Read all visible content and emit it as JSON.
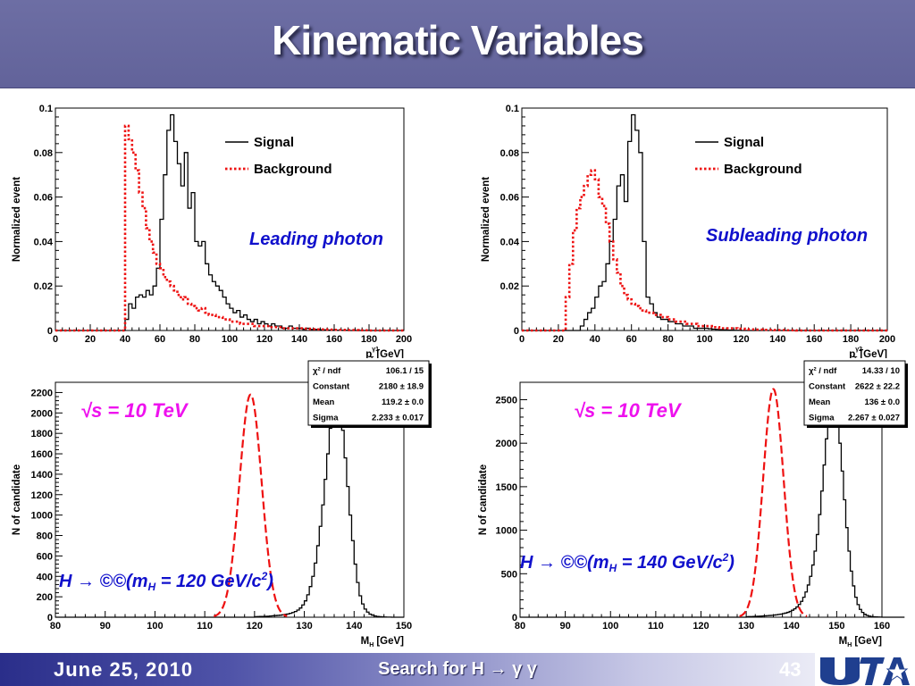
{
  "slide": {
    "title": "Kinematic Variables",
    "footer_date": "June 25, 2010",
    "footer_title": "Search for H → γ γ",
    "page_number": "43",
    "logo_text": "UTA"
  },
  "colors": {
    "signal": "#000000",
    "background": "#ee1111",
    "fit": "#ee1111",
    "annotation_blue": "#1010cc",
    "annotation_magenta": "#ee11ee",
    "title_bar": "#6a6ba2"
  },
  "chart_data": [
    {
      "id": "leading",
      "type": "line",
      "ylabel": "Normalized event",
      "xlabel_main": "p",
      "xlabel_sub": "T",
      "xlabel_sup": "γ1",
      "xlabel_unit": "[GeV]",
      "xlim": [
        0,
        200
      ],
      "ylim": [
        0,
        0.1
      ],
      "xticks": [
        0,
        20,
        40,
        60,
        80,
        100,
        120,
        140,
        160,
        180,
        200
      ],
      "yticks": [
        0,
        0.02,
        0.04,
        0.06,
        0.08,
        0.1
      ],
      "ytick_labels": [
        "0",
        "0.02",
        "0.04",
        "0.06",
        "0.08",
        "0.1"
      ],
      "annotation": "Leading photon",
      "legend": {
        "signal": "Signal",
        "background": "Background",
        "position": "top-right"
      },
      "series": [
        {
          "name": "Signal",
          "style": "step-solid",
          "x_start": 0,
          "bin_width": 2,
          "values": [
            0,
            0,
            0,
            0,
            0,
            0,
            0,
            0,
            0,
            0,
            0,
            0,
            0,
            0,
            0,
            0,
            0,
            0,
            0,
            0,
            0.005,
            0.012,
            0.01,
            0.015,
            0.016,
            0.015,
            0.018,
            0.016,
            0.02,
            0.028,
            0.05,
            0.07,
            0.09,
            0.097,
            0.085,
            0.075,
            0.065,
            0.08,
            0.055,
            0.062,
            0.04,
            0.038,
            0.04,
            0.03,
            0.025,
            0.022,
            0.02,
            0.018,
            0.015,
            0.012,
            0.01,
            0.008,
            0.009,
            0.006,
            0.007,
            0.005,
            0.004,
            0.005,
            0.003,
            0.004,
            0.003,
            0.002,
            0.003,
            0.002,
            0.002,
            0.001,
            0.001,
            0.002,
            0.001,
            0.001,
            0.001,
            0.0005,
            0.001,
            0.0005,
            0.0005,
            0.0005,
            0.0003,
            0.0003,
            0.0002,
            0.0002,
            0.0001,
            0.0001,
            0.0001,
            0.0001,
            0,
            0,
            0,
            0,
            0,
            0,
            0,
            0,
            0,
            0,
            0,
            0,
            0,
            0,
            0,
            0
          ]
        },
        {
          "name": "Background",
          "style": "step-dotted",
          "x_start": 0,
          "bin_width": 2,
          "values": [
            0,
            0,
            0,
            0,
            0,
            0,
            0,
            0,
            0,
            0,
            0,
            0,
            0,
            0,
            0,
            0,
            0,
            0,
            0,
            0,
            0.092,
            0.086,
            0.08,
            0.072,
            0.062,
            0.055,
            0.046,
            0.04,
            0.035,
            0.03,
            0.028,
            0.024,
            0.022,
            0.02,
            0.018,
            0.016,
            0.014,
            0.015,
            0.012,
            0.011,
            0.01,
            0.009,
            0.01,
            0.008,
            0.007,
            0.007,
            0.006,
            0.006,
            0.005,
            0.005,
            0.004,
            0.004,
            0.004,
            0.003,
            0.003,
            0.003,
            0.003,
            0.002,
            0.002,
            0.002,
            0.002,
            0.002,
            0.0015,
            0.0015,
            0.0015,
            0.001,
            0.001,
            0.001,
            0.001,
            0.001,
            0.001,
            0.0008,
            0.0008,
            0.0006,
            0.0006,
            0.0005,
            0.0005,
            0.0005,
            0.0004,
            0.0004,
            0.0003,
            0.0003,
            0.0003,
            0.0002,
            0.0002,
            0.0002,
            0.0002,
            0.0001,
            0.0001,
            0.0001,
            0,
            0,
            0,
            0,
            0,
            0,
            0,
            0,
            0,
            0
          ]
        }
      ]
    },
    {
      "id": "subleading",
      "type": "line",
      "ylabel": "Normalized event",
      "xlabel_main": "p",
      "xlabel_sub": "T",
      "xlabel_sup": "γ2",
      "xlabel_unit": "[GeV]",
      "xlim": [
        0,
        200
      ],
      "ylim": [
        0,
        0.1
      ],
      "xticks": [
        0,
        20,
        40,
        60,
        80,
        100,
        120,
        140,
        160,
        180,
        200
      ],
      "yticks": [
        0,
        0.02,
        0.04,
        0.06,
        0.08,
        0.1
      ],
      "ytick_labels": [
        "0",
        "0.02",
        "0.04",
        "0.06",
        "0.08",
        "0.1"
      ],
      "annotation": "Subleading photon",
      "legend": {
        "signal": "Signal",
        "background": "Background",
        "position": "top-right"
      },
      "series": [
        {
          "name": "Signal",
          "style": "step-solid",
          "x_start": 0,
          "bin_width": 2,
          "values": [
            0,
            0,
            0,
            0,
            0,
            0,
            0,
            0,
            0,
            0,
            0,
            0,
            0,
            0,
            0,
            0,
            0.002,
            0.005,
            0.008,
            0.01,
            0.015,
            0.02,
            0.022,
            0.03,
            0.04,
            0.05,
            0.065,
            0.07,
            0.058,
            0.085,
            0.097,
            0.09,
            0.08,
            0.04,
            0.015,
            0.012,
            0.008,
            0.006,
            0.005,
            0.005,
            0.004,
            0.004,
            0.003,
            0.003,
            0.002,
            0.002,
            0.002,
            0.001,
            0.001,
            0.001,
            0.001,
            0.0008,
            0.0006,
            0.0005,
            0.0004,
            0.0003,
            0.0002,
            0.0002,
            0.0001,
            0.0001,
            0,
            0,
            0,
            0,
            0,
            0,
            0,
            0,
            0,
            0,
            0,
            0,
            0,
            0,
            0,
            0,
            0,
            0,
            0,
            0,
            0,
            0,
            0,
            0,
            0,
            0,
            0,
            0,
            0,
            0,
            0,
            0,
            0,
            0,
            0,
            0,
            0,
            0,
            0,
            0
          ]
        },
        {
          "name": "Background",
          "style": "step-dotted",
          "x_start": 0,
          "bin_width": 2,
          "values": [
            0,
            0,
            0,
            0,
            0,
            0,
            0,
            0,
            0,
            0,
            0,
            0,
            0.015,
            0.03,
            0.045,
            0.055,
            0.06,
            0.065,
            0.07,
            0.072,
            0.068,
            0.06,
            0.056,
            0.048,
            0.04,
            0.032,
            0.026,
            0.02,
            0.016,
            0.014,
            0.012,
            0.011,
            0.01,
            0.009,
            0.008,
            0.008,
            0.007,
            0.007,
            0.006,
            0.006,
            0.005,
            0.005,
            0.004,
            0.004,
            0.004,
            0.003,
            0.003,
            0.003,
            0.002,
            0.002,
            0.002,
            0.002,
            0.0015,
            0.0015,
            0.001,
            0.001,
            0.001,
            0.001,
            0.001,
            0.0008,
            0.0008,
            0.0006,
            0.0005,
            0.0005,
            0.0004,
            0.0004,
            0.0003,
            0.0003,
            0.0003,
            0.0002,
            0.0002,
            0.0002,
            0.0001,
            0.0001,
            0.0001,
            0,
            0,
            0,
            0,
            0,
            0,
            0,
            0,
            0,
            0,
            0,
            0,
            0,
            0,
            0,
            0,
            0,
            0,
            0,
            0,
            0,
            0,
            0,
            0,
            0
          ]
        }
      ]
    },
    {
      "id": "mass120",
      "type": "line",
      "ylabel": "N of candidate",
      "xlabel_main": "M",
      "xlabel_sub": "H",
      "xlabel_sup": "",
      "xlabel_unit": "[GeV]",
      "xlim": [
        80,
        150
      ],
      "ylim": [
        0,
        2300
      ],
      "xticks": [
        80,
        90,
        100,
        110,
        120,
        130,
        140,
        150
      ],
      "yticks": [
        0,
        200,
        400,
        600,
        800,
        1000,
        1200,
        1400,
        1600,
        1800,
        2000,
        2200
      ],
      "ytick_labels": [
        "0",
        "200",
        "400",
        "600",
        "800",
        "1000",
        "1200",
        "1400",
        "1600",
        "1800",
        "2000",
        "2200"
      ],
      "energy_label": "√s = 10 TeV",
      "process_label": "H → ©©(m",
      "process_sub": "H",
      "process_mid": " = 120 GeV/c",
      "process_sup": "2",
      "process_end": ")",
      "stats": [
        {
          "label": "χ² / ndf",
          "value": "106.1 / 15"
        },
        {
          "label": "Constant",
          "value": "2180 ± 18.9"
        },
        {
          "label": "Mean",
          "value": "119.2 ± 0.0"
        },
        {
          "label": "Sigma",
          "value": "2.233 ± 0.017"
        }
      ],
      "fit": {
        "constant": 2180,
        "mean": 119.2,
        "sigma": 2.233
      },
      "series": [
        {
          "name": "histogram",
          "style": "step-solid",
          "x_start": 80,
          "bin_width": 0.5,
          "values": [
            0,
            0,
            0,
            0,
            0,
            0,
            0,
            0,
            0,
            0,
            0,
            0,
            0,
            0,
            0,
            0,
            0,
            0,
            0,
            0,
            0,
            0,
            0,
            0,
            0,
            0,
            0,
            0,
            0,
            0,
            0,
            0,
            0,
            0,
            0,
            0,
            0,
            0,
            0,
            0,
            0,
            0,
            0,
            0,
            0,
            0,
            0,
            0,
            0,
            0,
            0,
            0,
            0,
            0,
            0,
            0,
            0,
            0,
            0,
            0,
            0,
            0,
            0,
            0,
            0,
            0,
            0,
            0,
            0,
            0,
            0,
            0,
            0,
            0,
            0,
            0,
            0,
            0,
            0,
            0,
            5,
            6,
            7,
            8,
            9,
            10,
            12,
            14,
            16,
            18,
            20,
            24,
            28,
            32,
            38,
            46,
            56,
            70,
            90,
            120,
            160,
            220,
            300,
            400,
            530,
            700,
            890,
            1100,
            1350,
            1600,
            1850,
            2050,
            2230,
            2180,
            2050,
            1830,
            1560,
            1280,
            1000,
            750,
            520,
            340,
            210,
            130,
            80,
            50,
            30,
            20,
            12,
            8,
            5,
            3,
            2,
            1,
            1,
            0,
            0,
            0,
            0,
            0
          ]
        }
      ]
    },
    {
      "id": "mass140",
      "type": "line",
      "ylabel": "N of candidate",
      "xlabel_main": "M",
      "xlabel_sub": "H",
      "xlabel_sup": "",
      "xlabel_unit": "[GeV]",
      "xlim": [
        80,
        160
      ],
      "ylim": [
        0,
        2700
      ],
      "xticks": [
        80,
        90,
        100,
        110,
        120,
        130,
        140,
        150,
        160
      ],
      "yticks": [
        0,
        500,
        1000,
        1500,
        2000,
        2500
      ],
      "ytick_labels": [
        "0",
        "500",
        "1000",
        "1500",
        "2000",
        "2500"
      ],
      "energy_label": "√s = 10 TeV",
      "process_label": "H → ©©(m",
      "process_sub": "H",
      "process_mid": " = 140 GeV/c",
      "process_sup": "2",
      "process_end": ")",
      "stats": [
        {
          "label": "χ² / ndf",
          "value": "14.33 / 10"
        },
        {
          "label": "Constant",
          "value": "2622 ± 22.2"
        },
        {
          "label": "Mean",
          "value": "136 ± 0.0"
        },
        {
          "label": "Sigma",
          "value": "2.267 ± 0.027"
        }
      ],
      "fit": {
        "constant": 2622,
        "mean": 136,
        "sigma": 2.267
      },
      "series": [
        {
          "name": "histogram",
          "style": "step-solid",
          "x_start": 80,
          "bin_width": 0.5,
          "values": [
            0,
            0,
            0,
            0,
            0,
            0,
            0,
            0,
            0,
            0,
            0,
            0,
            0,
            0,
            0,
            0,
            0,
            0,
            0,
            0,
            0,
            0,
            0,
            0,
            0,
            0,
            0,
            0,
            0,
            0,
            0,
            0,
            0,
            0,
            0,
            0,
            0,
            0,
            0,
            0,
            0,
            0,
            0,
            0,
            0,
            0,
            0,
            0,
            0,
            0,
            0,
            0,
            0,
            0,
            0,
            0,
            0,
            0,
            0,
            0,
            0,
            0,
            0,
            0,
            0,
            0,
            0,
            0,
            0,
            0,
            0,
            0,
            0,
            0,
            0,
            0,
            0,
            0,
            0,
            0,
            0,
            0,
            0,
            0,
            0,
            0,
            0,
            0,
            0,
            0,
            0,
            0,
            0,
            0,
            0,
            0,
            0,
            0,
            0,
            0,
            6,
            7,
            8,
            9,
            10,
            11,
            12,
            14,
            16,
            18,
            20,
            22,
            25,
            28,
            32,
            36,
            42,
            48,
            56,
            66,
            80,
            96,
            118,
            146,
            182,
            230,
            290,
            370,
            470,
            600,
            760,
            950,
            1180,
            1450,
            1750,
            2050,
            2350,
            2560,
            2610,
            2520,
            2300,
            2000,
            1680,
            1350,
            1030,
            760,
            530,
            360,
            230,
            145,
            90,
            55,
            34,
            21,
            13,
            8,
            5,
            3,
            2,
            1,
            0,
            0,
            0,
            0,
            0,
            0,
            0,
            0,
            0,
            0
          ]
        }
      ]
    }
  ]
}
